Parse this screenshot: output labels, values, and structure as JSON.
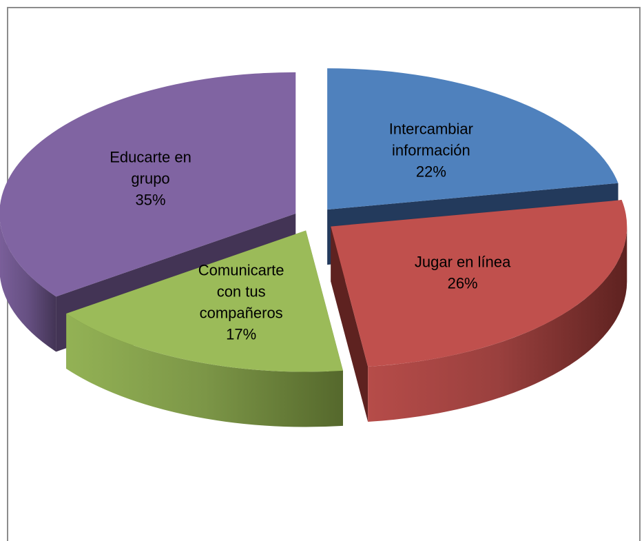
{
  "chart_data": {
    "type": "pie",
    "title": "",
    "exploded": true,
    "three_d": true,
    "slices": [
      {
        "label_lines": [
          "Intercambiar",
          "información"
        ],
        "value": 22,
        "value_label": "22%",
        "color": "#4F81BD",
        "side_color": "#233A5C"
      },
      {
        "label_lines": [
          "Jugar en línea"
        ],
        "value": 26,
        "value_label": "26%",
        "color": "#C0504D",
        "side_color": "#5E2220"
      },
      {
        "label_lines": [
          "Comunicarte",
          "con tus",
          "compañeros"
        ],
        "value": 17,
        "value_label": "17%",
        "color": "#9BBB59",
        "side_color": "#55682C"
      },
      {
        "label_lines": [
          "Educarte en",
          "grupo"
        ],
        "value": 35,
        "value_label": "35%",
        "color": "#8064A2",
        "side_color": "#433455"
      }
    ]
  }
}
